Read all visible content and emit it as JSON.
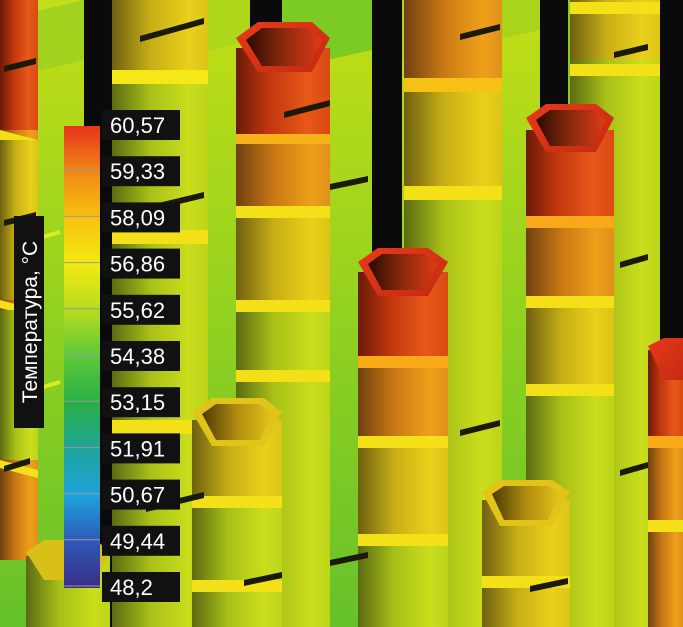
{
  "colorbar": {
    "title": "Температура, °C",
    "ticks": [
      "60,57",
      "59,33",
      "58,09",
      "56,86",
      "55,62",
      "54,38",
      "53,15",
      "51,91",
      "50,67",
      "49,44",
      "48,2"
    ],
    "colors": [
      "#e8321c",
      "#f08a14",
      "#f6c210",
      "#f2ea10",
      "#b6dc1e",
      "#5cc83a",
      "#2aae46",
      "#1ea49a",
      "#1da2dc",
      "#2f58b8",
      "#3a2c86"
    ]
  }
}
